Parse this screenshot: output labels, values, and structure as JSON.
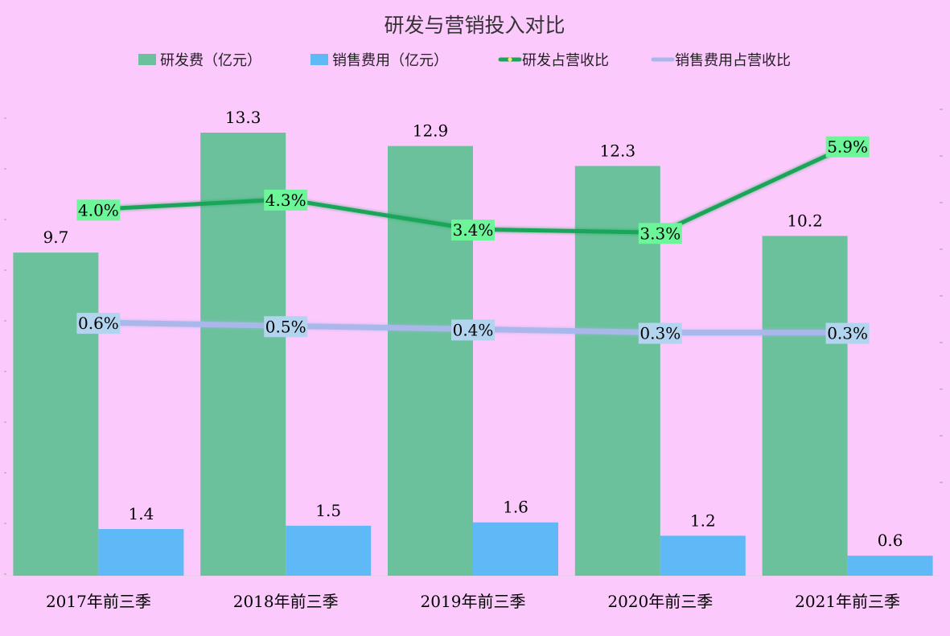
{
  "colors": {
    "background": "#fcc9fc",
    "rd_bar": "#6bc19c",
    "sales_bar": "#5fb9f7",
    "rd_line": "#1aa558",
    "sales_line": "#a9b7ea",
    "rd_label_bg": "#6df59a",
    "sales_label_bg": "#b3d4ef",
    "axis": "#d9d9d9"
  },
  "chart_data": {
    "type": "bar+line",
    "title": "研发与营销投入对比",
    "categories": [
      "2017年前三季",
      "2018年前三季",
      "2019年前三季",
      "2020年前三季",
      "2021年前三季"
    ],
    "bar_ylim": [
      0,
      14
    ],
    "line_ylim": [
      -7,
      7
    ],
    "series": [
      {
        "name": "研发费（亿元）",
        "kind": "bar",
        "values": [
          9.7,
          13.3,
          12.9,
          12.3,
          10.2
        ],
        "labels": [
          "9.7",
          "13.3",
          "12.9",
          "12.3",
          "10.2"
        ]
      },
      {
        "name": "销售费用（亿元）",
        "kind": "bar",
        "values": [
          1.4,
          1.5,
          1.6,
          1.2,
          0.6
        ],
        "labels": [
          "1.4",
          "1.5",
          "1.6",
          "1.2",
          "0.6"
        ]
      },
      {
        "name": "研发占营收比",
        "kind": "line",
        "values": [
          4.0,
          4.3,
          3.4,
          3.3,
          5.9
        ],
        "labels": [
          "4.0%",
          "4.3%",
          "3.4%",
          "3.3%",
          "5.9%"
        ]
      },
      {
        "name": "销售费用占营收比",
        "kind": "line",
        "values": [
          0.6,
          0.5,
          0.4,
          0.3,
          0.3
        ],
        "labels": [
          "0.6%",
          "0.5%",
          "0.4%",
          "0.3%",
          "0.3%"
        ]
      }
    ],
    "legend": "top-center",
    "grid": false
  }
}
